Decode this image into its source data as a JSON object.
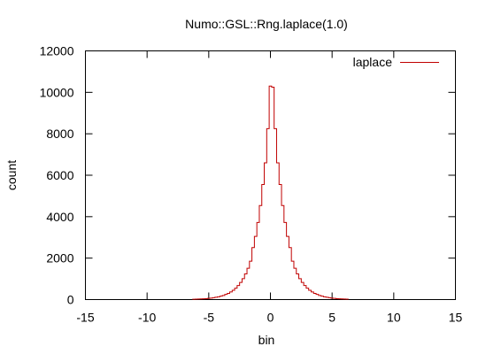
{
  "chart_data": {
    "type": "histogram-step",
    "title": "Numo::GSL::Rng.laplace(1.0)",
    "xlabel": "bin",
    "ylabel": "count",
    "xlim": [
      -15,
      15
    ],
    "ylim": [
      0,
      12000
    ],
    "xticks": [
      -15,
      -10,
      -5,
      0,
      5,
      10,
      15
    ],
    "yticks": [
      0,
      2000,
      4000,
      6000,
      8000,
      10000,
      12000
    ],
    "grid": false,
    "legend_position": "top-right",
    "series": [
      {
        "name": "laplace",
        "color": "#c00000",
        "x": [
          -6.2,
          -6.0,
          -5.8,
          -5.6,
          -5.4,
          -5.2,
          -5.0,
          -4.8,
          -4.6,
          -4.4,
          -4.2,
          -4.0,
          -3.8,
          -3.6,
          -3.4,
          -3.2,
          -3.0,
          -2.8,
          -2.6,
          -2.4,
          -2.2,
          -2.0,
          -1.8,
          -1.6,
          -1.4,
          -1.2,
          -1.0,
          -0.8,
          -0.6,
          -0.4,
          -0.2,
          0.0,
          0.2,
          0.4,
          0.6,
          0.8,
          1.0,
          1.2,
          1.4,
          1.6,
          1.8,
          2.0,
          2.2,
          2.4,
          2.6,
          2.8,
          3.0,
          3.2,
          3.4,
          3.6,
          3.8,
          4.0,
          4.2,
          4.4,
          4.6,
          4.8,
          5.0,
          5.2,
          5.4,
          5.6,
          5.8,
          6.0,
          6.2
        ],
        "y": [
          15,
          20,
          25,
          30,
          35,
          45,
          60,
          70,
          90,
          110,
          135,
          165,
          200,
          250,
          300,
          370,
          450,
          550,
          680,
          830,
          1010,
          1240,
          1510,
          1850,
          2510,
          3050,
          3720,
          4540,
          5550,
          6600,
          8250,
          10300,
          10250,
          8250,
          6600,
          5550,
          4540,
          3720,
          3050,
          2510,
          1850,
          1510,
          1240,
          1010,
          830,
          680,
          550,
          450,
          370,
          300,
          250,
          200,
          165,
          135,
          110,
          90,
          70,
          60,
          45,
          35,
          30,
          25,
          20
        ]
      }
    ]
  }
}
